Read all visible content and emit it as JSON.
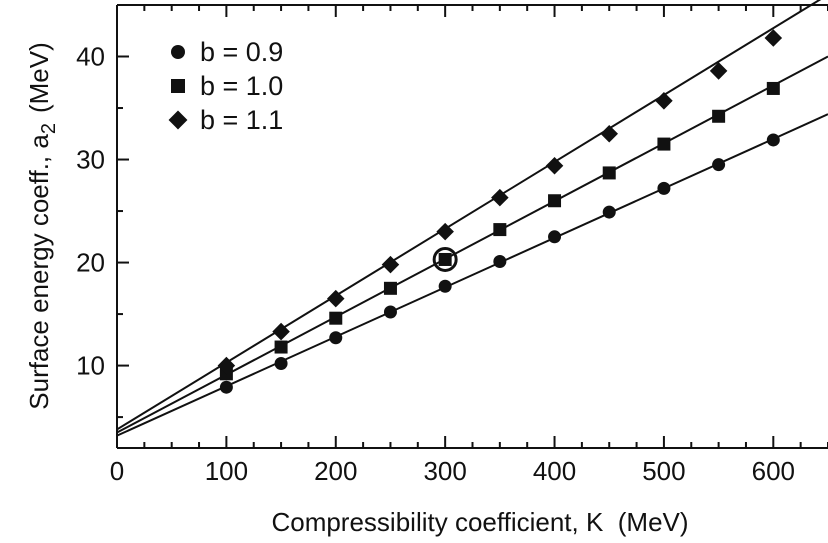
{
  "chart_data": {
    "type": "scatter",
    "xlabel": "Compressibility coefficient, K  (MeV)",
    "ylabel_main": "Surface energy coeff., a",
    "ylabel_sub": "2",
    "ylabel_unit": "(MeV)",
    "xlim": [
      0,
      650
    ],
    "ylim": [
      2,
      45
    ],
    "xticks": [
      0,
      100,
      200,
      300,
      400,
      500,
      600
    ],
    "yticks": [
      10,
      20,
      30,
      40
    ],
    "x": [
      100,
      150,
      200,
      250,
      300,
      350,
      400,
      450,
      500,
      550,
      600
    ],
    "series": [
      {
        "name": "b = 0.9",
        "marker": "circle",
        "values": [
          7.9,
          10.2,
          12.7,
          15.2,
          17.7,
          20.1,
          22.5,
          24.9,
          27.2,
          29.5,
          31.9
        ],
        "line": [
          3.2,
          34.4
        ]
      },
      {
        "name": "b = 1.0",
        "marker": "square",
        "values": [
          9.2,
          11.8,
          14.6,
          17.5,
          20.3,
          23.2,
          26.0,
          28.7,
          31.5,
          34.2,
          36.9
        ],
        "line": [
          3.5,
          40.0
        ]
      },
      {
        "name": "b = 1.1",
        "marker": "diamond",
        "values": [
          10.0,
          13.3,
          16.5,
          19.8,
          23.0,
          26.3,
          29.4,
          32.5,
          35.7,
          38.6,
          41.8
        ],
        "line": [
          3.8,
          46.0
        ]
      }
    ],
    "highlight": {
      "x": 300,
      "y": 20.3,
      "marker": "open-circle"
    },
    "legend_position": "top-left",
    "grid": false
  }
}
